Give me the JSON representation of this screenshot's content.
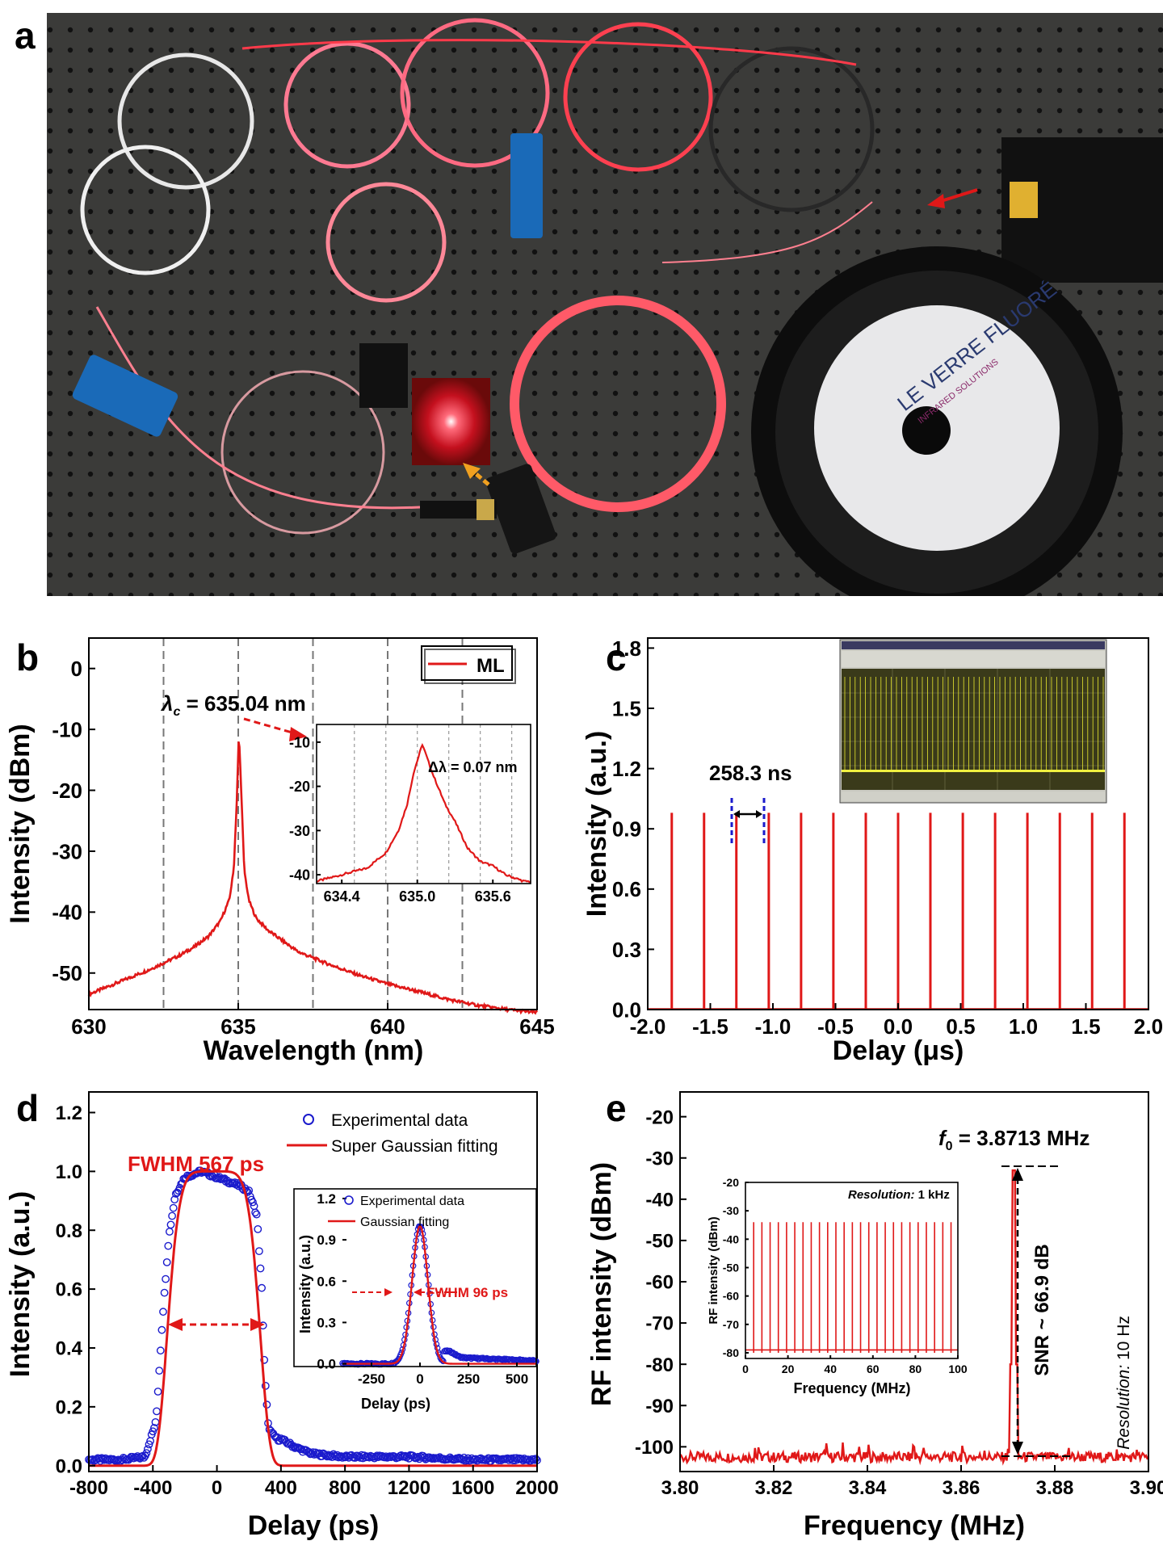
{
  "panel_a": {
    "letter": "a",
    "spool_brand": "LE VERRE FLUORÉ",
    "spool_tagline": "INFRARED SOLUTIONS"
  },
  "chart_data": [
    {
      "panel": "b",
      "type": "line",
      "xlabel": "Wavelength (nm)",
      "ylabel": "Intensity (dBm)",
      "xlim": [
        630,
        645
      ],
      "ylim": [
        -56,
        5
      ],
      "xticks": [
        630,
        635,
        640,
        645
      ],
      "yticks": [
        0,
        -10,
        -20,
        -30,
        -40,
        -50
      ],
      "vlines": [
        632.5,
        635,
        637.5,
        640,
        642.5
      ],
      "legend": [
        "ML"
      ],
      "annotation": "λc = 635.04 nm",
      "series": [
        {
          "name": "ML",
          "color": "#e01818",
          "x": [
            630,
            631,
            632,
            633,
            633.5,
            634,
            634.4,
            634.7,
            634.85,
            634.95,
            635.02,
            635.1,
            635.2,
            635.35,
            635.6,
            636,
            637,
            638,
            639,
            640,
            641,
            642,
            643,
            644,
            645
          ],
          "y": [
            -53.5,
            -51.5,
            -49.5,
            -47.2,
            -45.8,
            -44,
            -41.5,
            -38,
            -33,
            -22,
            -10.5,
            -20,
            -33,
            -38,
            -41,
            -43,
            -46.5,
            -48.5,
            -50.3,
            -51.8,
            -53,
            -54.3,
            -55.3,
            -56,
            -56.5
          ]
        }
      ],
      "inset": {
        "xlim": [
          634.2,
          635.9
        ],
        "ylim": [
          -42,
          -6
        ],
        "xticks": [
          634.4,
          635.0,
          635.6
        ],
        "yticks": [
          -10,
          -20,
          -30,
          -40
        ],
        "annotation": "Δλ = 0.07 nm",
        "x": [
          634.2,
          634.4,
          634.6,
          634.75,
          634.85,
          634.92,
          634.97,
          635.04,
          635.12,
          635.22,
          635.3,
          635.4,
          635.5,
          635.6,
          635.7,
          635.85
        ],
        "y": [
          -41.5,
          -40,
          -38.5,
          -35,
          -30,
          -24,
          -17,
          -10.5,
          -17,
          -24,
          -28,
          -34,
          -37,
          -38,
          -40,
          -41.5
        ]
      }
    },
    {
      "panel": "c",
      "type": "line",
      "xlabel": "Delay (μs)",
      "ylabel": "Intensity (a.u.)",
      "xlim": [
        -2.0,
        2.0
      ],
      "ylim": [
        0,
        1.85
      ],
      "xticks": [
        -2.0,
        -1.5,
        -1.0,
        -0.5,
        0.0,
        0.5,
        1.0,
        1.5,
        2.0
      ],
      "yticks": [
        0.0,
        0.3,
        0.6,
        0.9,
        1.2,
        1.5,
        1.8
      ],
      "annotation": "258.3 ns",
      "pulse_period_us": 0.2583,
      "pulse_height": 0.98,
      "series": [
        {
          "color": "#e01818",
          "pulse_positions_us": [
            -1.808,
            -1.55,
            -1.292,
            -1.033,
            -0.775,
            -0.517,
            -0.258,
            0.0,
            0.258,
            0.517,
            0.775,
            1.033,
            1.292,
            1.55,
            1.808
          ]
        }
      ]
    },
    {
      "panel": "d",
      "type": "line",
      "xlabel": "Delay (ps)",
      "ylabel": "Intensity (a.u.)",
      "xlim": [
        -800,
        2000
      ],
      "ylim": [
        -0.02,
        1.27
      ],
      "xticks": [
        -800,
        -400,
        0,
        400,
        800,
        1200,
        1600,
        2000
      ],
      "yticks": [
        0.0,
        0.2,
        0.4,
        0.6,
        0.8,
        1.0,
        1.2
      ],
      "legend": [
        "Experimental data",
        "Super Gaussian fitting"
      ],
      "annotation": "FWHM 567 ps",
      "series": [
        {
          "name": "Experimental data",
          "color": "#1a1acc",
          "x": [
            -800,
            -600,
            -450,
            -380,
            -340,
            -300,
            -260,
            -200,
            -100,
            0,
            100,
            150,
            200,
            250,
            280,
            300,
            320,
            340,
            380,
            400,
            500,
            600,
            800,
            1000,
            1200,
            1600,
            2000
          ],
          "y": [
            0.02,
            0.02,
            0.03,
            0.15,
            0.5,
            0.78,
            0.92,
            0.98,
            1.0,
            0.98,
            0.96,
            0.95,
            0.93,
            0.85,
            0.6,
            0.3,
            0.14,
            0.11,
            0.09,
            0.09,
            0.06,
            0.04,
            0.03,
            0.03,
            0.03,
            0.02,
            0.02
          ]
        },
        {
          "name": "Super Gaussian fitting",
          "color": "#e01818",
          "center": -20,
          "fwhm": 567,
          "order": 6
        }
      ],
      "inset": {
        "xlim": [
          -400,
          600
        ],
        "ylim": [
          -0.02,
          1.27
        ],
        "xticks": [
          -250,
          0,
          250,
          500
        ],
        "yticks": [
          0.0,
          0.3,
          0.6,
          0.9,
          1.2
        ],
        "xlabel": "Delay (ps)",
        "ylabel": "Intensity (a.u.)",
        "legend": [
          "Experimental data",
          "Gaussian fitting"
        ],
        "annotation": "FWHM 96 ps",
        "gaussian_center": 0,
        "gaussian_fwhm": 96
      }
    },
    {
      "panel": "e",
      "type": "line",
      "xlabel": "Frequency (MHz)",
      "ylabel": "RF intensity (dBm)",
      "xlim": [
        3.8,
        3.9
      ],
      "ylim": [
        -106,
        -14
      ],
      "xticks": [
        3.8,
        3.82,
        3.84,
        3.86,
        3.88,
        3.9
      ],
      "yticks": [
        -20,
        -30,
        -40,
        -50,
        -60,
        -70,
        -80,
        -90,
        -100
      ],
      "annotation": "f0 = 3.8713 MHz",
      "snr_label": "SNR ~ 66.9 dB",
      "resolution_label": "Resolution: 10 Hz",
      "series": [
        {
          "color": "#e01818",
          "peak_x": 3.8713,
          "peak_y": -33,
          "noise_floor": -102.5
        }
      ],
      "inset": {
        "xlim": [
          0,
          100
        ],
        "ylim": [
          -82,
          -20
        ],
        "xticks": [
          0,
          20,
          40,
          60,
          80,
          100
        ],
        "yticks": [
          -20,
          -30,
          -40,
          -50,
          -60,
          -70,
          -80
        ],
        "xlabel": "Frequency (MHz)",
        "ylabel": "RF intensity (dBm)",
        "resolution_label": "Resolution: 1 kHz",
        "harmonic_spacing_mhz": 3.8713,
        "peak_level": -34,
        "floor_level": -80
      }
    }
  ],
  "labels": {
    "b": "b",
    "c": "c",
    "d": "d",
    "e": "e",
    "lambda_c_sym": "λ",
    "lambda_c_sub": "c",
    "lambda_c_val": " = 635.04 nm",
    "delta_lambda": "Δλ = 0.07 nm",
    "legend_ml": "ML",
    "pulse_spacing": "258.3 ns",
    "fwhm_main": "FWHM 567 ps",
    "fwhm_inset": "FWHM 96 ps",
    "leg_exp": "Experimental data",
    "leg_sg": "Super Gaussian fitting",
    "leg_g": "Gaussian fitting",
    "f0_sym": "f",
    "f0_sub": "0",
    "f0_val": " = 3.8713 MHz",
    "snr": "SNR ~ 66.9 dB",
    "res_main_i": "Resolution:",
    "res_main_v": " 10 Hz",
    "res_inset_i": "Resolution:",
    "res_inset_v": " 1 kHz",
    "xlabel_b": "Wavelength (nm)",
    "ylabel_b": "Intensity (dBm)",
    "xlabel_c": "Delay (μs)",
    "ylabel_c": "Intensity (a.u.)",
    "xlabel_d": "Delay (ps)",
    "ylabel_d": "Intensity (a.u.)",
    "xlabel_e": "Frequency (MHz)",
    "ylabel_e": "RF intensity (dBm)",
    "xlabel_d_in": "Delay (ps)",
    "ylabel_d_in": "Intensity (a.u.)",
    "xlabel_e_in": "Frequency (MHz)",
    "ylabel_e_in": "RF intensity (dBm)"
  },
  "colors": {
    "red": "#e01818",
    "blue": "#1a1acc",
    "table": "#3a3a38"
  }
}
